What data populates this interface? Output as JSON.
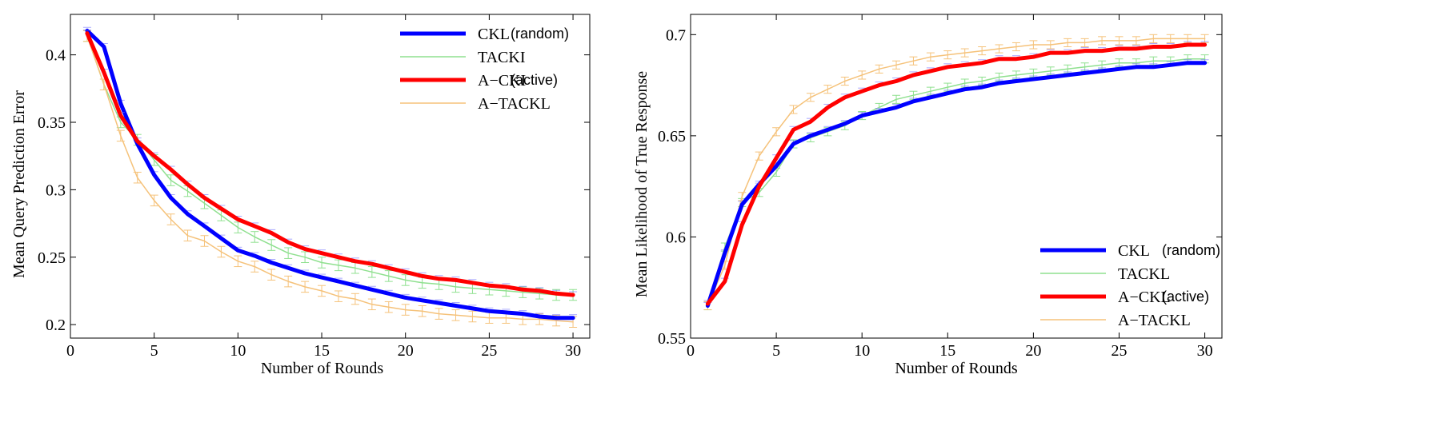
{
  "chart_data": [
    {
      "type": "line",
      "xlabel": "Number of Rounds",
      "ylabel": "Mean Query Prediction Error",
      "xlim": [
        0,
        31
      ],
      "ylim": [
        0.19,
        0.43
      ],
      "xticks": [
        0,
        5,
        10,
        15,
        20,
        25,
        30
      ],
      "xtick_labels": [
        "0",
        "5",
        "10",
        "15",
        "20",
        "25",
        "30"
      ],
      "yticks": [
        0.2,
        0.25,
        0.3,
        0.35,
        0.4
      ],
      "ytick_labels": [
        "0.2",
        "0.25",
        "0.3",
        "0.35",
        "0.4"
      ],
      "legend_position": "top-right",
      "x": [
        1,
        2,
        3,
        4,
        5,
        6,
        7,
        8,
        9,
        10,
        11,
        12,
        13,
        14,
        15,
        16,
        17,
        18,
        19,
        20,
        21,
        22,
        23,
        24,
        25,
        26,
        27,
        28,
        29,
        30
      ],
      "series": [
        {
          "name": "CKL",
          "suffix": "(random)",
          "color": "#0000ff",
          "width": 5,
          "errorbars": false,
          "values": [
            0.418,
            0.406,
            0.364,
            0.334,
            0.311,
            0.294,
            0.282,
            0.273,
            0.264,
            0.255,
            0.251,
            0.246,
            0.242,
            0.238,
            0.235,
            0.232,
            0.229,
            0.226,
            0.223,
            0.22,
            0.218,
            0.216,
            0.214,
            0.212,
            0.21,
            0.209,
            0.208,
            0.206,
            0.205,
            0.205
          ]
        },
        {
          "name": "TACKI",
          "suffix": "",
          "color": "#8fe08f",
          "width": 1.5,
          "errorbars": true,
          "err": 0.004,
          "values": [
            0.414,
            0.378,
            0.35,
            0.337,
            0.322,
            0.307,
            0.299,
            0.29,
            0.281,
            0.272,
            0.265,
            0.259,
            0.253,
            0.25,
            0.246,
            0.244,
            0.242,
            0.239,
            0.236,
            0.233,
            0.231,
            0.23,
            0.228,
            0.227,
            0.226,
            0.225,
            0.224,
            0.223,
            0.222,
            0.222
          ]
        },
        {
          "name": "A−CKI",
          "suffix": "(active)",
          "color": "#ff0000",
          "width": 5,
          "errorbars": false,
          "values": [
            0.416,
            0.387,
            0.355,
            0.336,
            0.325,
            0.315,
            0.304,
            0.294,
            0.286,
            0.278,
            0.273,
            0.268,
            0.261,
            0.256,
            0.253,
            0.25,
            0.247,
            0.245,
            0.242,
            0.239,
            0.236,
            0.234,
            0.233,
            0.231,
            0.229,
            0.228,
            0.226,
            0.225,
            0.223,
            0.222
          ]
        },
        {
          "name": "A−TACKL",
          "suffix": "",
          "color": "#f5c27a",
          "width": 1.5,
          "errorbars": true,
          "err": 0.004,
          "values": [
            0.414,
            0.378,
            0.34,
            0.309,
            0.292,
            0.278,
            0.266,
            0.262,
            0.254,
            0.247,
            0.243,
            0.237,
            0.232,
            0.228,
            0.225,
            0.221,
            0.219,
            0.215,
            0.213,
            0.211,
            0.21,
            0.208,
            0.207,
            0.206,
            0.205,
            0.205,
            0.204,
            0.204,
            0.203,
            0.202
          ]
        }
      ]
    },
    {
      "type": "line",
      "xlabel": "Number of Rounds",
      "ylabel": "Mean Likelihood of True Response",
      "xlim": [
        0,
        31
      ],
      "ylim": [
        0.55,
        0.71
      ],
      "xticks": [
        0,
        5,
        10,
        15,
        20,
        25,
        30
      ],
      "xtick_labels": [
        "0",
        "5",
        "10",
        "15",
        "20",
        "25",
        "30"
      ],
      "yticks": [
        0.55,
        0.6,
        0.65,
        0.7
      ],
      "ytick_labels": [
        "0.55",
        "0.6",
        "0.65",
        "0.7"
      ],
      "legend_position": "bottom-right",
      "x": [
        1,
        2,
        3,
        4,
        5,
        6,
        7,
        8,
        9,
        10,
        11,
        12,
        13,
        14,
        15,
        16,
        17,
        18,
        19,
        20,
        21,
        22,
        23,
        24,
        25,
        26,
        27,
        28,
        29,
        30
      ],
      "series": [
        {
          "name": "CKL",
          "suffix": "(random)",
          "color": "#0000ff",
          "width": 5,
          "errorbars": false,
          "values": [
            0.566,
            0.592,
            0.616,
            0.626,
            0.635,
            0.646,
            0.65,
            0.653,
            0.656,
            0.66,
            0.662,
            0.664,
            0.667,
            0.669,
            0.671,
            0.673,
            0.674,
            0.676,
            0.677,
            0.678,
            0.679,
            0.68,
            0.681,
            0.682,
            0.683,
            0.684,
            0.684,
            0.685,
            0.686,
            0.686
          ]
        },
        {
          "name": "TACKL",
          "suffix": "",
          "color": "#8fe08f",
          "width": 1.5,
          "errorbars": true,
          "err": 0.002,
          "values": [
            0.566,
            0.595,
            0.617,
            0.622,
            0.632,
            0.646,
            0.649,
            0.652,
            0.655,
            0.66,
            0.664,
            0.668,
            0.67,
            0.672,
            0.674,
            0.676,
            0.677,
            0.679,
            0.68,
            0.681,
            0.682,
            0.683,
            0.684,
            0.685,
            0.686,
            0.686,
            0.687,
            0.687,
            0.688,
            0.688
          ]
        },
        {
          "name": "A−CKL",
          "suffix": "(active)",
          "color": "#ff0000",
          "width": 5,
          "errorbars": false,
          "values": [
            0.567,
            0.578,
            0.606,
            0.625,
            0.639,
            0.653,
            0.657,
            0.664,
            0.669,
            0.672,
            0.675,
            0.677,
            0.68,
            0.682,
            0.684,
            0.685,
            0.686,
            0.688,
            0.688,
            0.689,
            0.691,
            0.691,
            0.692,
            0.692,
            0.693,
            0.693,
            0.694,
            0.694,
            0.695,
            0.695
          ]
        },
        {
          "name": "A−TACKL",
          "suffix": "",
          "color": "#f5c27a",
          "width": 1.5,
          "errorbars": true,
          "err": 0.002,
          "values": [
            0.566,
            0.586,
            0.62,
            0.64,
            0.652,
            0.663,
            0.669,
            0.673,
            0.677,
            0.68,
            0.683,
            0.685,
            0.687,
            0.689,
            0.69,
            0.691,
            0.692,
            0.693,
            0.694,
            0.695,
            0.695,
            0.696,
            0.696,
            0.697,
            0.697,
            0.697,
            0.698,
            0.698,
            0.698,
            0.698
          ]
        }
      ]
    }
  ]
}
